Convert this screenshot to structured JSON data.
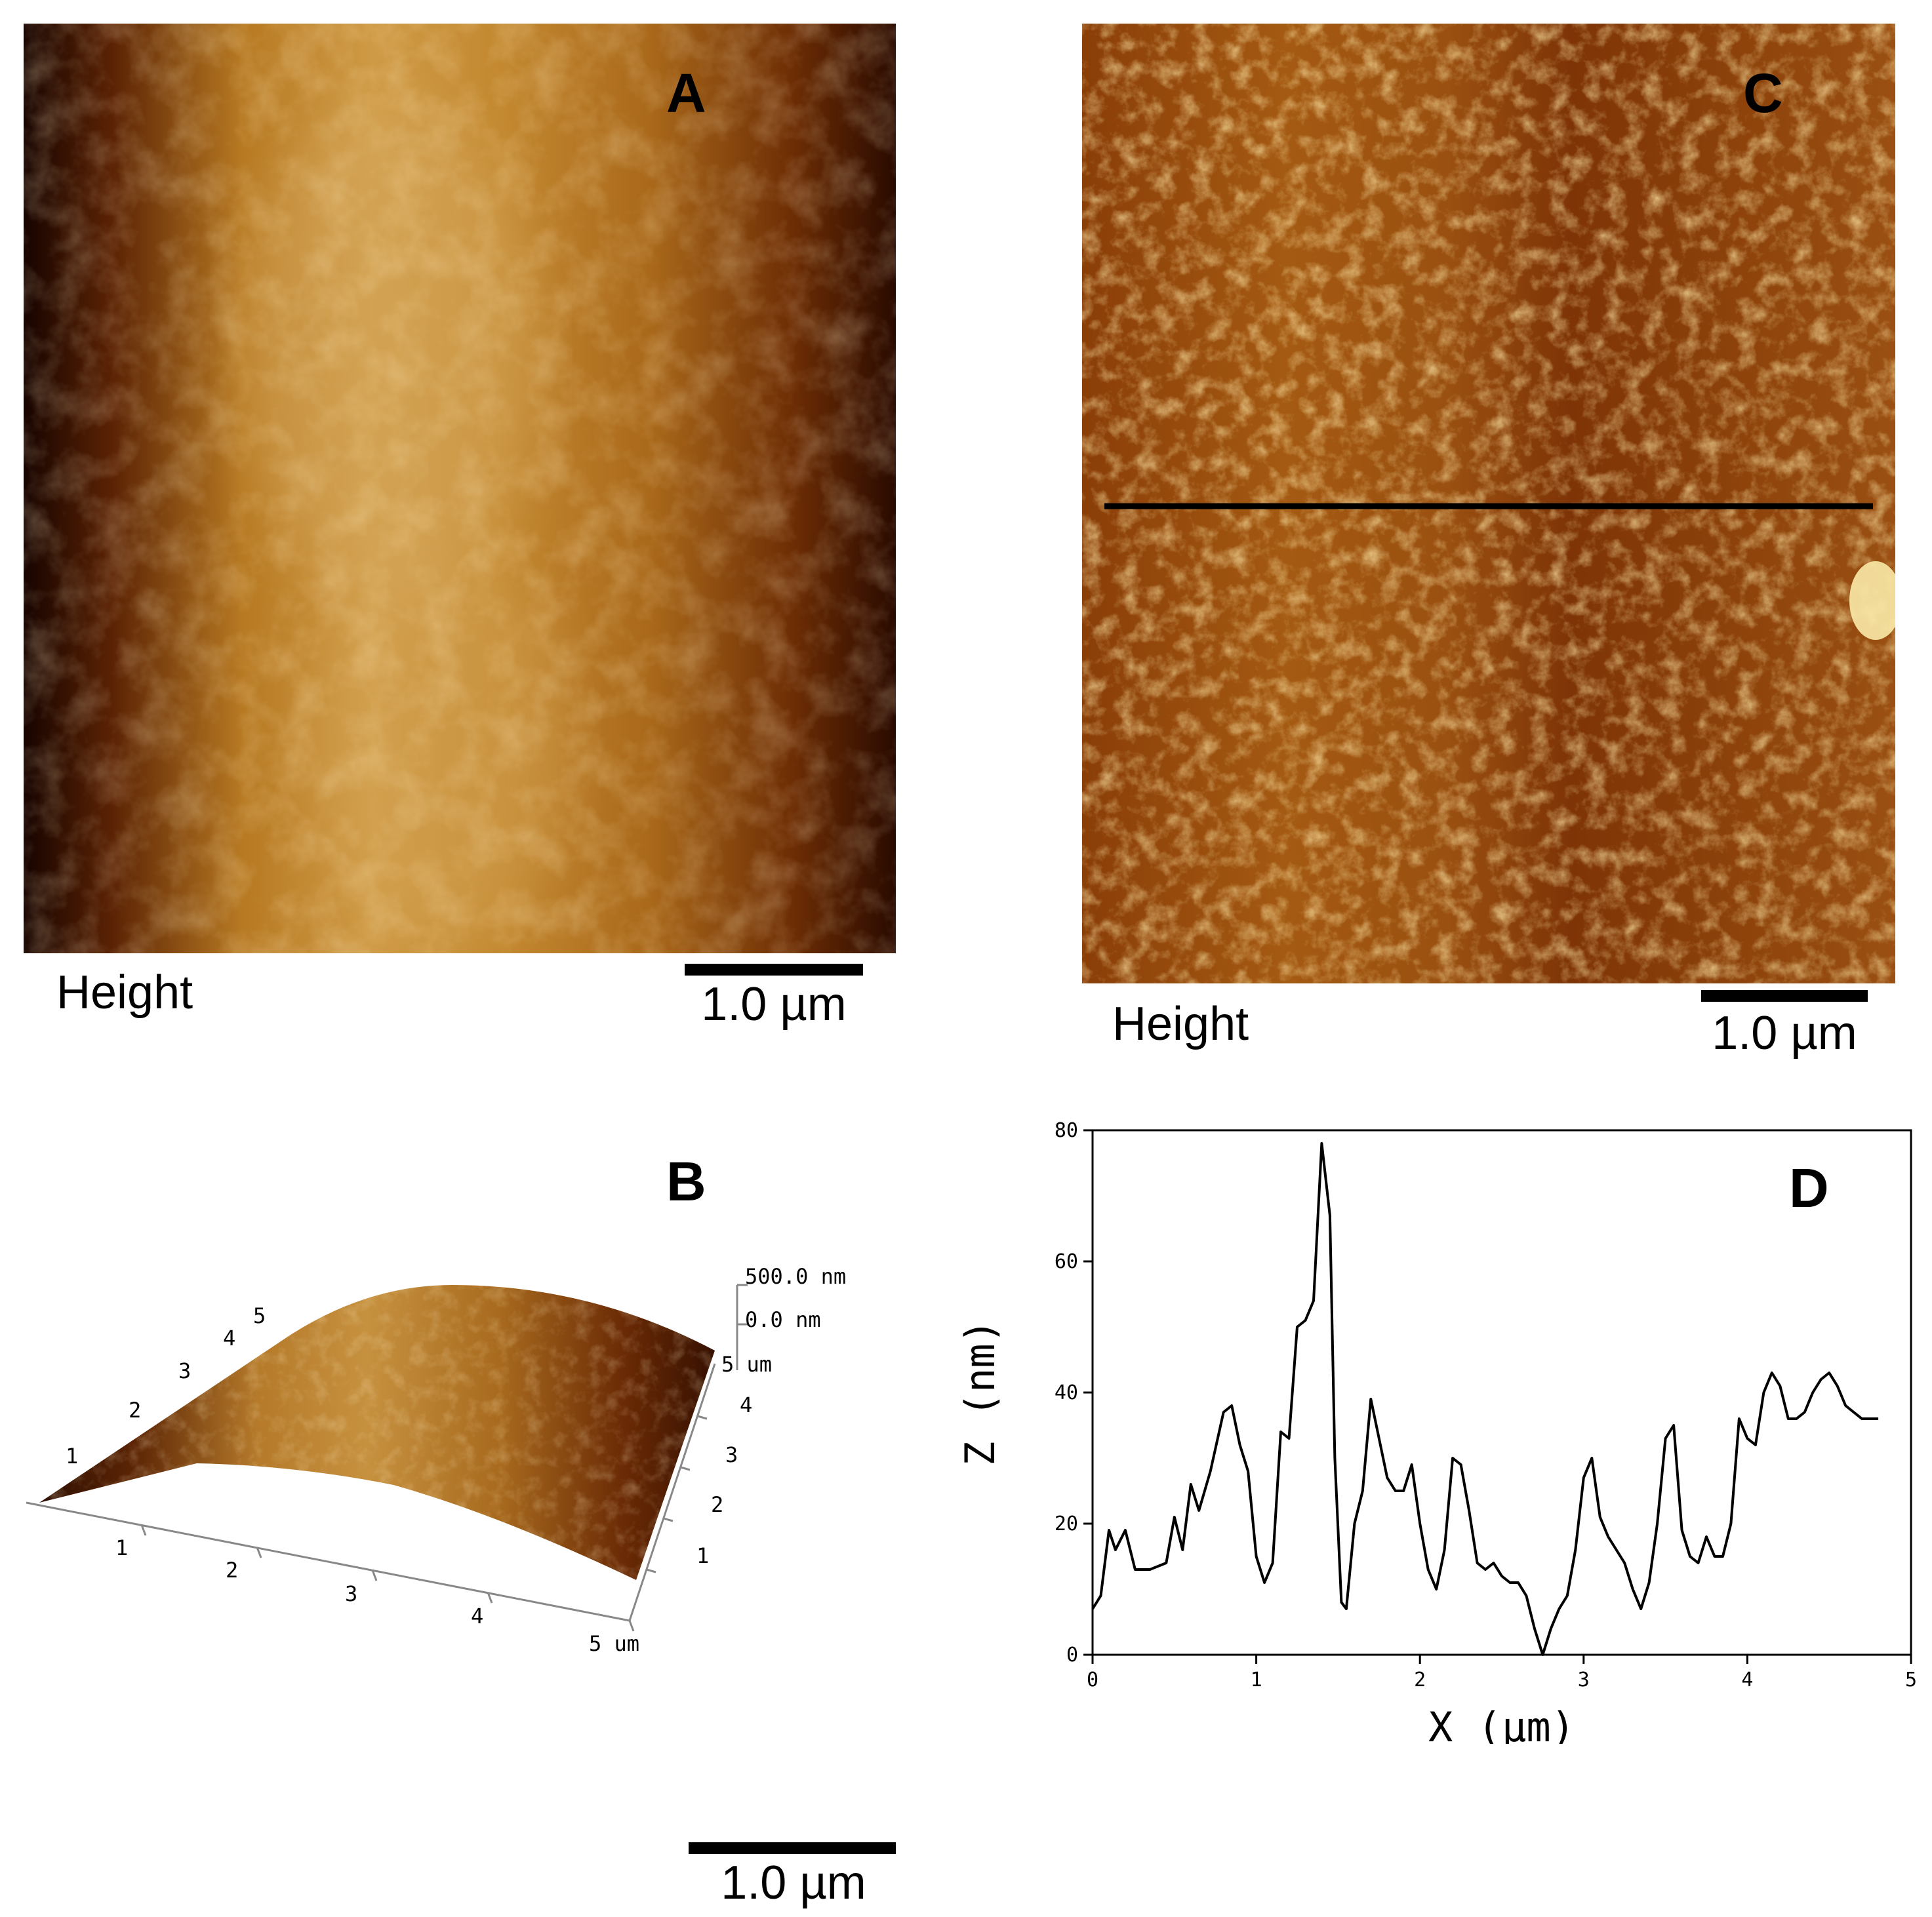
{
  "panels": {
    "a": {
      "letter": "A",
      "channel_label": "Height",
      "scale_label": "1.0 µm",
      "colors": {
        "dark": "#1c0600",
        "mid": "#9a5a16",
        "bright": "#ddb366"
      }
    },
    "b": {
      "letter": "B",
      "z_top_label": "500.0 nm",
      "z_zero_label": "0.0 nm",
      "y_unit_label": "5 um",
      "x_ticks": [
        "1",
        "2",
        "3",
        "4",
        "5 um"
      ],
      "y_ticks": [
        "1",
        "2",
        "3",
        "4"
      ],
      "back_ticks": [
        "1",
        "2",
        "3",
        "4",
        "5"
      ],
      "scale_label": "1.0 µm",
      "colors": {
        "dark": "#1a0500",
        "mid": "#a06018",
        "bright": "#e2b46a"
      }
    },
    "c": {
      "letter": "C",
      "channel_label": "Height",
      "scale_label": "1.0 µm",
      "colors": {
        "dark": "#6e2a02",
        "mid": "#a65e12",
        "bright": "#f0c864"
      }
    },
    "d": {
      "letter": "D"
    }
  },
  "chart_data": {
    "type": "line",
    "title": "",
    "xlabel": "X (µm)",
    "ylabel": "Z (nm)",
    "xlim": [
      0,
      5
    ],
    "ylim": [
      0,
      80
    ],
    "x_ticks": [
      0,
      1,
      2,
      3,
      4,
      5
    ],
    "y_ticks": [
      0,
      20,
      40,
      60,
      80
    ],
    "grid": false,
    "series": [
      {
        "x": [
          0.0,
          0.05,
          0.1,
          0.14,
          0.2,
          0.26,
          0.35,
          0.45,
          0.5,
          0.55,
          0.6,
          0.65,
          0.72,
          0.8,
          0.85,
          0.9,
          0.95,
          1.0,
          1.05,
          1.1,
          1.15,
          1.2,
          1.25,
          1.3,
          1.35,
          1.4,
          1.45,
          1.48,
          1.52,
          1.55,
          1.6,
          1.65,
          1.7,
          1.75,
          1.8,
          1.85,
          1.9,
          1.95,
          2.0,
          2.05,
          2.1,
          2.15,
          2.2,
          2.25,
          2.3,
          2.35,
          2.4,
          2.45,
          2.5,
          2.55,
          2.6,
          2.65,
          2.7,
          2.75,
          2.8,
          2.85,
          2.9,
          2.95,
          3.0,
          3.05,
          3.1,
          3.15,
          3.2,
          3.25,
          3.3,
          3.35,
          3.4,
          3.45,
          3.5,
          3.55,
          3.6,
          3.65,
          3.7,
          3.75,
          3.8,
          3.85,
          3.9,
          3.95,
          4.0,
          4.05,
          4.1,
          4.15,
          4.2,
          4.25,
          4.3,
          4.35,
          4.4,
          4.45,
          4.5,
          4.55,
          4.6,
          4.65,
          4.7,
          4.75,
          4.8
        ],
        "values": [
          7,
          9,
          19,
          16,
          19,
          13,
          13,
          14,
          21,
          16,
          26,
          22,
          28,
          37,
          38,
          32,
          28,
          15,
          11,
          14,
          34,
          33,
          50,
          51,
          54,
          78,
          67,
          30,
          8,
          7,
          20,
          25,
          39,
          33,
          27,
          25,
          25,
          29,
          20,
          13,
          10,
          16,
          30,
          29,
          22,
          14,
          13,
          14,
          12,
          11,
          11,
          9,
          4,
          0,
          4,
          7,
          9,
          16,
          27,
          30,
          21,
          18,
          16,
          14,
          10,
          7,
          11,
          20,
          33,
          35,
          19,
          15,
          14,
          18,
          15,
          15,
          20,
          36,
          33,
          32,
          40,
          43,
          41,
          36,
          36,
          37,
          40,
          42,
          43,
          41,
          38,
          37,
          36,
          36,
          36
        ]
      }
    ]
  }
}
